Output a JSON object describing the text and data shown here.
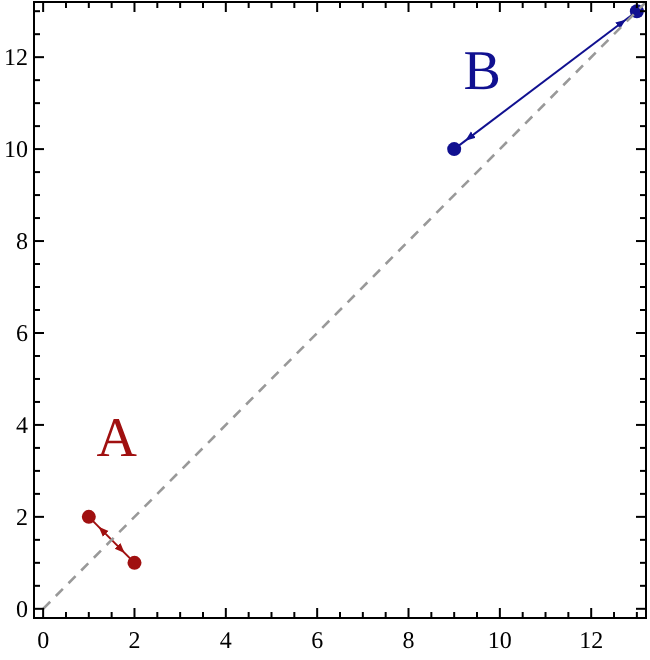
{
  "chart_data": {
    "type": "line",
    "xlim": [
      -0.2,
      13.2
    ],
    "ylim": [
      -0.2,
      13.2
    ],
    "xticks": [
      0,
      {
        "value": 0.5,
        "label": null
      },
      {
        "value": 1,
        "label": null
      },
      {
        "value": 1.5,
        "label": null
      },
      2,
      {
        "value": 2.5,
        "label": null
      },
      {
        "value": 3,
        "label": null
      },
      {
        "value": 3.5,
        "label": null
      },
      4,
      {
        "value": 4.5,
        "label": null
      },
      {
        "value": 5,
        "label": null
      },
      {
        "value": 5.5,
        "label": null
      },
      6,
      {
        "value": 6.5,
        "label": null
      },
      {
        "value": 7,
        "label": null
      },
      {
        "value": 7.5,
        "label": null
      },
      8,
      {
        "value": 8.5,
        "label": null
      },
      {
        "value": 9,
        "label": null
      },
      {
        "value": 9.5,
        "label": null
      },
      10,
      {
        "value": 10.5,
        "label": null
      },
      {
        "value": 11,
        "label": null
      },
      {
        "value": 11.5,
        "label": null
      },
      12,
      {
        "value": 12.5,
        "label": null
      },
      {
        "value": 13,
        "label": null
      }
    ],
    "yticks": [
      0,
      {
        "value": 0.5,
        "label": null
      },
      {
        "value": 1,
        "label": null
      },
      {
        "value": 1.5,
        "label": null
      },
      2,
      {
        "value": 2.5,
        "label": null
      },
      {
        "value": 3,
        "label": null
      },
      {
        "value": 3.5,
        "label": null
      },
      4,
      {
        "value": 4.5,
        "label": null
      },
      {
        "value": 5,
        "label": null
      },
      {
        "value": 5.5,
        "label": null
      },
      6,
      {
        "value": 6.5,
        "label": null
      },
      {
        "value": 7,
        "label": null
      },
      {
        "value": 7.5,
        "label": null
      },
      8,
      {
        "value": 8.5,
        "label": null
      },
      {
        "value": 9,
        "label": null
      },
      {
        "value": 9.5,
        "label": null
      },
      10,
      {
        "value": 10.5,
        "label": null
      },
      {
        "value": 11,
        "label": null
      },
      {
        "value": 11.5,
        "label": null
      },
      12,
      {
        "value": 12.5,
        "label": null
      },
      {
        "value": 13,
        "label": null
      }
    ],
    "grid": false,
    "marker": "circle",
    "line_style": "solid",
    "series": [
      {
        "name": "A",
        "color": "#a01010",
        "x": [
          1,
          2
        ],
        "values": [
          2,
          1
        ]
      },
      {
        "name": "B",
        "color": "#101090",
        "x": [
          9,
          13
        ],
        "values": [
          10,
          13
        ]
      },
      {
        "color": "#999999",
        "x": [
          0,
          13.2
        ],
        "values": [
          0,
          13.2
        ],
        "marker": "none",
        "line_style": "dashed"
      }
    ]
  }
}
